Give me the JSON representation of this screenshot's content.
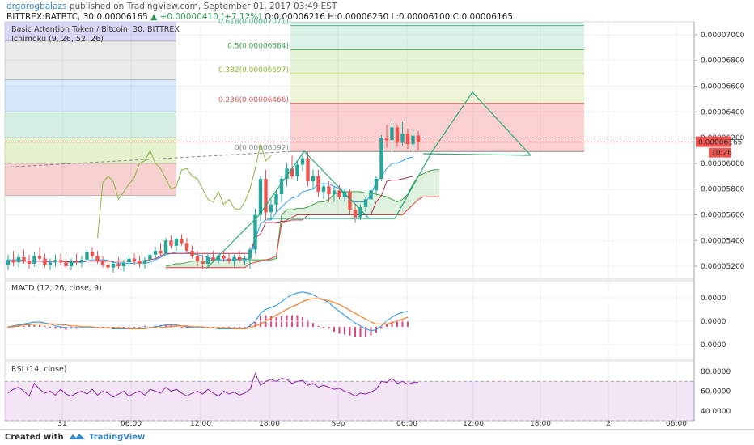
{
  "header": {
    "author": "drgorogbalazs",
    "published": "published on TradingView.com, September 01, 2017 03:49 EST",
    "symbol": "BITTREX:BATBTC, 30",
    "last": "0.00006165",
    "change": "▲ +0.00000410 (+7.12%)",
    "ohlc": "O:0.00006216 H:0.00006250 L:0.00006100 C:0.00006165"
  },
  "footer": {
    "created": "Created with",
    "brand": "TradingView"
  },
  "colors": {
    "up": "#26a69a",
    "down": "#ef5350",
    "trend": "#2aa876",
    "macd": "#3a9fe0",
    "signal": "#f57c2a",
    "rsi": "#8e24aa",
    "price_tag": "#ef5350"
  },
  "chart_data": [
    {
      "type": "candlestick",
      "title": "Basic Attention Token / Bitcoin, 30, BITTREX",
      "indicator": "Ichimoku (9, 26, 52, 26)",
      "ylim": [
        5.1e-05,
        7.1e-05
      ],
      "y_ticks": [
        "0.00007000",
        "0.00006800",
        "0.00006600",
        "0.00006400",
        "0.00006200",
        "0.00006000",
        "0.00005800",
        "0.00005600",
        "0.00005400",
        "0.00005200"
      ],
      "x_ticks": [
        "31",
        "06:00",
        "12:00",
        "18:00",
        "Sep",
        "06:00",
        "12:00",
        "18:00",
        "2",
        "06:00"
      ],
      "last_price": "0.00006165",
      "countdown": "10:26",
      "grid": true,
      "fib_levels": [
        {
          "label": "0.618(0.00007071)",
          "value": 7.071e-05
        },
        {
          "label": "0.5(0.00006884)",
          "value": 6.884e-05
        },
        {
          "label": "0.382(0.00006697)",
          "value": 6.697e-05
        },
        {
          "label": "0.236(0.00006466)",
          "value": 6.466e-05
        },
        {
          "label": "0(0.00006092)",
          "value": 6.092e-05
        }
      ],
      "candles": [
        {
          "o": 5210,
          "h": 5290,
          "l": 5170,
          "c": 5250
        },
        {
          "o": 5250,
          "h": 5320,
          "l": 5200,
          "c": 5230
        },
        {
          "o": 5230,
          "h": 5300,
          "l": 5190,
          "c": 5270
        },
        {
          "o": 5270,
          "h": 5330,
          "l": 5220,
          "c": 5240
        },
        {
          "o": 5240,
          "h": 5290,
          "l": 5180,
          "c": 5220
        },
        {
          "o": 5220,
          "h": 5310,
          "l": 5200,
          "c": 5280
        },
        {
          "o": 5280,
          "h": 5350,
          "l": 5240,
          "c": 5260
        },
        {
          "o": 5260,
          "h": 5300,
          "l": 5190,
          "c": 5210
        },
        {
          "o": 5210,
          "h": 5260,
          "l": 5170,
          "c": 5230
        },
        {
          "o": 5230,
          "h": 5290,
          "l": 5200,
          "c": 5250
        },
        {
          "o": 5250,
          "h": 5300,
          "l": 5210,
          "c": 5230
        },
        {
          "o": 5230,
          "h": 5270,
          "l": 5180,
          "c": 5200
        },
        {
          "o": 5200,
          "h": 5260,
          "l": 5170,
          "c": 5240
        },
        {
          "o": 5240,
          "h": 5300,
          "l": 5210,
          "c": 5230
        },
        {
          "o": 5230,
          "h": 5280,
          "l": 5190,
          "c": 5250
        },
        {
          "o": 5250,
          "h": 5330,
          "l": 5230,
          "c": 5310
        },
        {
          "o": 5310,
          "h": 5350,
          "l": 5260,
          "c": 5280
        },
        {
          "o": 5280,
          "h": 5320,
          "l": 5220,
          "c": 5240
        },
        {
          "o": 5240,
          "h": 5280,
          "l": 5190,
          "c": 5210
        },
        {
          "o": 5210,
          "h": 5250,
          "l": 5160,
          "c": 5190
        },
        {
          "o": 5190,
          "h": 5240,
          "l": 5150,
          "c": 5220
        },
        {
          "o": 5220,
          "h": 5270,
          "l": 5180,
          "c": 5200
        },
        {
          "o": 5200,
          "h": 5250,
          "l": 5160,
          "c": 5230
        },
        {
          "o": 5230,
          "h": 5290,
          "l": 5200,
          "c": 5260
        },
        {
          "o": 5260,
          "h": 5300,
          "l": 5210,
          "c": 5240
        },
        {
          "o": 5240,
          "h": 5280,
          "l": 5190,
          "c": 5220
        },
        {
          "o": 5220,
          "h": 5270,
          "l": 5180,
          "c": 5250
        },
        {
          "o": 5250,
          "h": 5310,
          "l": 5230,
          "c": 5290
        },
        {
          "o": 5290,
          "h": 5350,
          "l": 5260,
          "c": 5320
        },
        {
          "o": 5320,
          "h": 5380,
          "l": 5280,
          "c": 5300
        },
        {
          "o": 5300,
          "h": 5420,
          "l": 5290,
          "c": 5400
        },
        {
          "o": 5400,
          "h": 5440,
          "l": 5340,
          "c": 5360
        },
        {
          "o": 5360,
          "h": 5420,
          "l": 5320,
          "c": 5410
        },
        {
          "o": 5410,
          "h": 5450,
          "l": 5360,
          "c": 5380
        },
        {
          "o": 5380,
          "h": 5420,
          "l": 5300,
          "c": 5320
        },
        {
          "o": 5320,
          "h": 5360,
          "l": 5260,
          "c": 5280
        },
        {
          "o": 5280,
          "h": 5320,
          "l": 5200,
          "c": 5240
        },
        {
          "o": 5240,
          "h": 5290,
          "l": 5180,
          "c": 5220
        },
        {
          "o": 5220,
          "h": 5300,
          "l": 5190,
          "c": 5270
        },
        {
          "o": 5270,
          "h": 5320,
          "l": 5230,
          "c": 5250
        },
        {
          "o": 5250,
          "h": 5300,
          "l": 5220,
          "c": 5280
        },
        {
          "o": 5280,
          "h": 5320,
          "l": 5240,
          "c": 5260
        },
        {
          "o": 5260,
          "h": 5300,
          "l": 5220,
          "c": 5240
        },
        {
          "o": 5240,
          "h": 5290,
          "l": 5200,
          "c": 5270
        },
        {
          "o": 5270,
          "h": 5320,
          "l": 5230,
          "c": 5250
        },
        {
          "o": 5250,
          "h": 5280,
          "l": 5210,
          "c": 5260
        },
        {
          "o": 5260,
          "h": 5350,
          "l": 5180,
          "c": 5330
        },
        {
          "o": 5330,
          "h": 5650,
          "l": 5300,
          "c": 5600
        },
        {
          "o": 5600,
          "h": 5900,
          "l": 5550,
          "c": 5880
        },
        {
          "o": 5880,
          "h": 5950,
          "l": 5560,
          "c": 5620
        },
        {
          "o": 5620,
          "h": 5720,
          "l": 5560,
          "c": 5680
        },
        {
          "o": 5680,
          "h": 5800,
          "l": 5620,
          "c": 5760
        },
        {
          "o": 5760,
          "h": 5900,
          "l": 5700,
          "c": 5880
        },
        {
          "o": 5880,
          "h": 6000,
          "l": 5820,
          "c": 5960
        },
        {
          "o": 5960,
          "h": 6060,
          "l": 5880,
          "c": 5900
        },
        {
          "o": 5900,
          "h": 6020,
          "l": 5860,
          "c": 5990
        },
        {
          "o": 5990,
          "h": 6080,
          "l": 5940,
          "c": 6040
        },
        {
          "o": 6040,
          "h": 6090,
          "l": 5820,
          "c": 5860
        },
        {
          "o": 5860,
          "h": 5950,
          "l": 5800,
          "c": 5900
        },
        {
          "o": 5900,
          "h": 5950,
          "l": 5740,
          "c": 5780
        },
        {
          "o": 5780,
          "h": 5850,
          "l": 5720,
          "c": 5820
        },
        {
          "o": 5820,
          "h": 5860,
          "l": 5700,
          "c": 5760
        },
        {
          "o": 5760,
          "h": 5820,
          "l": 5700,
          "c": 5790
        },
        {
          "o": 5790,
          "h": 5830,
          "l": 5720,
          "c": 5740
        },
        {
          "o": 5740,
          "h": 5800,
          "l": 5700,
          "c": 5780
        },
        {
          "o": 5780,
          "h": 5800,
          "l": 5600,
          "c": 5640
        },
        {
          "o": 5640,
          "h": 5690,
          "l": 5540,
          "c": 5580
        },
        {
          "o": 5580,
          "h": 5680,
          "l": 5560,
          "c": 5660
        },
        {
          "o": 5660,
          "h": 5740,
          "l": 5620,
          "c": 5720
        },
        {
          "o": 5720,
          "h": 5820,
          "l": 5680,
          "c": 5790
        },
        {
          "o": 5790,
          "h": 5900,
          "l": 5760,
          "c": 5880
        },
        {
          "o": 5880,
          "h": 6220,
          "l": 5860,
          "c": 6200
        },
        {
          "o": 6200,
          "h": 6300,
          "l": 6120,
          "c": 6180
        },
        {
          "o": 6180,
          "h": 6330,
          "l": 6100,
          "c": 6280
        },
        {
          "o": 6280,
          "h": 6300,
          "l": 6130,
          "c": 6160
        },
        {
          "o": 6160,
          "h": 6320,
          "l": 6140,
          "c": 6230
        },
        {
          "o": 6230,
          "h": 6270,
          "l": 6110,
          "c": 6150
        },
        {
          "o": 6150,
          "h": 6260,
          "l": 6100,
          "c": 6216
        },
        {
          "o": 6216,
          "h": 6250,
          "l": 6100,
          "c": 6165
        }
      ],
      "tenkan": [
        5250,
        5250,
        5250,
        5245,
        5240,
        5240,
        5240,
        5235,
        5235,
        5240,
        5240,
        5235,
        5230,
        5230,
        5230,
        5240,
        5250,
        5250,
        5250,
        5245,
        5230,
        5225,
        5225,
        5220,
        5225,
        5225,
        5225,
        5230,
        5250,
        5270,
        5290,
        5300,
        5310,
        5310,
        5310,
        5300,
        5290,
        5280,
        5270,
        5250,
        5250,
        5250,
        5250,
        5250,
        5250,
        5250,
        5260,
        5410,
        5530,
        5560,
        5560,
        5620,
        5660,
        5700,
        5730,
        5740,
        5780,
        5790,
        5800,
        5840,
        5840,
        5840,
        5820,
        5800,
        5760,
        5720,
        5700,
        5700,
        5700,
        5760,
        5850,
        5900,
        5960,
        6000,
        6000,
        6020,
        6040,
        6050
      ],
      "kijun": [
        5240,
        5240,
        5240,
        5240,
        5240,
        5240,
        5240,
        5240,
        5240,
        5240,
        5240,
        5235,
        5235,
        5235,
        5235,
        5240,
        5240,
        5240,
        5240,
        5240,
        5240,
        5240,
        5240,
        5240,
        5240,
        5240,
        5240,
        5250,
        5260,
        5280,
        5300,
        5300,
        5300,
        5300,
        5300,
        5300,
        5300,
        5300,
        5300,
        5300,
        5300,
        5300,
        5300,
        5300,
        5300,
        5300,
        5300,
        5420,
        5450,
        5540,
        5540,
        5540,
        5550,
        5550,
        5560,
        5560,
        5560,
        5600,
        5600,
        5600,
        5600,
        5600,
        5600,
        5600,
        5600,
        5600,
        5600,
        5600,
        5600,
        5600,
        5700,
        5750,
        5860,
        5870,
        5870,
        5880,
        5890,
        5900
      ],
      "chikou": [
        5420,
        5850,
        5900,
        5860,
        5720,
        5780,
        5840,
        5890,
        6000,
        6020,
        6100,
        6000,
        5960,
        5880,
        5800,
        5820,
        5950,
        5960,
        5900,
        5880,
        5800,
        5720,
        5700,
        5780,
        5680,
        5720,
        5650,
        5640,
        5700,
        5800,
        5960,
        6150,
        6020,
        6060
      ],
      "cloud_a": [
        5200,
        5210,
        5220,
        5220,
        5230,
        5240,
        5240,
        5240,
        5240,
        5250,
        5250,
        5250,
        5250,
        5250,
        5260,
        5260,
        5250,
        5250,
        5250,
        5250,
        5250,
        5260,
        5600,
        5640,
        5640,
        5650,
        5650,
        5660,
        5680,
        5700,
        5700,
        5720,
        5760,
        5780,
        5780,
        5780,
        5780,
        5780,
        5770,
        5770,
        5760,
        5750,
        5740,
        5720,
        5700,
        5720,
        5760,
        5840,
        5900,
        5920,
        5940,
        5950,
        5950
      ],
      "cloud_b": [
        5190,
        5190,
        5190,
        5190,
        5190,
        5190,
        5190,
        5190,
        5190,
        5190,
        5190,
        5190,
        5190,
        5190,
        5190,
        5190,
        5220,
        5230,
        5240,
        5250,
        5260,
        5280,
        5530,
        5560,
        5580,
        5600,
        5600,
        5600,
        5600,
        5600,
        5600,
        5600,
        5600,
        5600,
        5600,
        5600,
        5600,
        5600,
        5600,
        5600,
        5600,
        5600,
        5600,
        5600,
        5600,
        5600,
        5640,
        5680,
        5720,
        5740,
        5740,
        5740,
        5740
      ]
    },
    {
      "type": "line",
      "title": "MACD (12, 26, close, 9)",
      "y_ticks": [
        "0.0000",
        "0.0000",
        "0.0000"
      ],
      "macd": [
        0,
        1,
        2,
        3,
        4,
        5,
        5,
        4,
        3,
        1,
        0,
        -1,
        -1,
        -1,
        -1,
        -1,
        -1,
        -1,
        -1,
        -1,
        -2,
        -2,
        -2,
        -2,
        -2,
        -2,
        -1,
        -1,
        0,
        1,
        2,
        2,
        2,
        1,
        0,
        -1,
        -1,
        -1,
        -1,
        -1,
        -2,
        -2,
        -2,
        -2,
        -2,
        -2,
        1,
        6,
        14,
        18,
        20,
        22,
        26,
        30,
        33,
        35,
        36,
        35,
        33,
        30,
        28,
        25,
        20,
        16,
        12,
        8,
        4,
        1,
        -2,
        -4,
        -3,
        1,
        6,
        10,
        13,
        15,
        16
      ],
      "signal": [
        0,
        0,
        1,
        2,
        2,
        3,
        3,
        3,
        3,
        3,
        2,
        2,
        1,
        1,
        0,
        0,
        0,
        -1,
        -1,
        -1,
        -1,
        -1,
        -1,
        -2,
        -2,
        -2,
        -2,
        -1,
        -1,
        -1,
        0,
        0,
        1,
        1,
        1,
        0,
        0,
        0,
        -1,
        -1,
        -1,
        -1,
        -1,
        -2,
        -2,
        -2,
        -1,
        1,
        3,
        6,
        9,
        12,
        15,
        18,
        21,
        23,
        26,
        28,
        29,
        29,
        28,
        27,
        25,
        23,
        20,
        17,
        14,
        11,
        8,
        5,
        3,
        3,
        3,
        4,
        6,
        8,
        10
      ],
      "hist": [
        0,
        1,
        1,
        1,
        2,
        2,
        2,
        1,
        0,
        -2,
        -2,
        -3,
        -2,
        -2,
        -1,
        -1,
        -1,
        0,
        0,
        0,
        -1,
        -1,
        -1,
        0,
        0,
        0,
        1,
        0,
        1,
        2,
        2,
        2,
        1,
        0,
        -1,
        -1,
        -1,
        -1,
        0,
        0,
        -1,
        -1,
        -1,
        0,
        0,
        0,
        2,
        5,
        11,
        12,
        11,
        10,
        11,
        12,
        12,
        12,
        10,
        7,
        4,
        1,
        0,
        -2,
        -5,
        -7,
        -8,
        -9,
        -10,
        -10,
        -10,
        -9,
        -6,
        -2,
        3,
        6,
        7,
        7,
        6
      ]
    },
    {
      "type": "line",
      "title": "RSI (14, close)",
      "ylim": [
        30,
        90
      ],
      "y_ticks": [
        "80.0000",
        "60.0000",
        "40.0000"
      ],
      "band": [
        30,
        70
      ],
      "values": [
        58,
        62,
        64,
        60,
        55,
        68,
        62,
        58,
        60,
        56,
        62,
        57,
        55,
        58,
        60,
        57,
        62,
        56,
        60,
        58,
        54,
        57,
        60,
        55,
        58,
        60,
        56,
        62,
        60,
        58,
        64,
        60,
        62,
        58,
        55,
        58,
        60,
        57,
        62,
        58,
        55,
        60,
        57,
        59,
        56,
        58,
        62,
        78,
        66,
        70,
        72,
        70,
        73,
        72,
        68,
        70,
        71,
        66,
        68,
        64,
        66,
        64,
        62,
        63,
        60,
        58,
        55,
        58,
        57,
        59,
        62,
        70,
        69,
        73,
        68,
        70,
        67,
        69,
        69
      ]
    }
  ]
}
